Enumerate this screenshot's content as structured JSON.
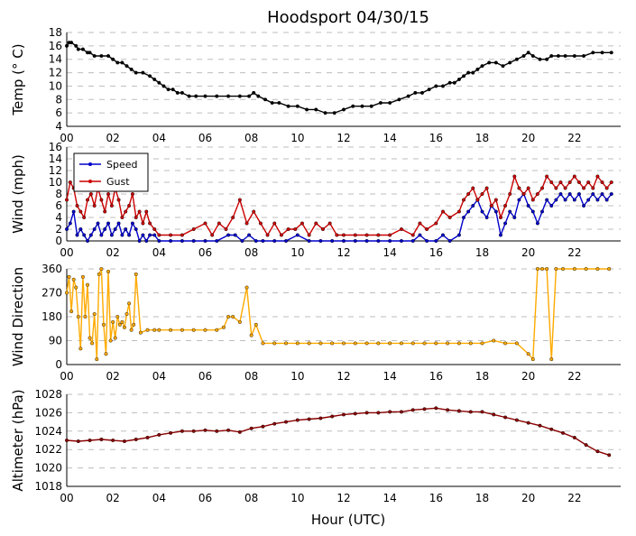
{
  "title": "Hoodsport 04/30/15",
  "xlabel": "Hour (UTC)",
  "chart_data": [
    {
      "type": "line",
      "name_id": "temp",
      "ylabel": "Temp ($^\\circ$C)",
      "ylabel_display": "Temp (° C)",
      "ylim": [
        4,
        18
      ],
      "yticks": [
        "4",
        "6",
        "8",
        "10",
        "12",
        "14",
        "16",
        "18"
      ],
      "xlim": [
        0,
        24
      ],
      "xticks": [
        "00",
        "02",
        "04",
        "06",
        "08",
        "10",
        "12",
        "14",
        "16",
        "18",
        "20",
        "22"
      ],
      "grid": true,
      "series": [
        {
          "color": "#000000",
          "marker": "point",
          "x": [
            0,
            0.1,
            0.2,
            0.4,
            0.5,
            0.7,
            0.9,
            1.0,
            1.2,
            1.5,
            1.8,
            2.0,
            2.2,
            2.4,
            2.6,
            2.8,
            3.0,
            3.3,
            3.6,
            3.8,
            4.0,
            4.2,
            4.4,
            4.6,
            4.8,
            5.0,
            5.3,
            5.6,
            6.0,
            6.5,
            7.0,
            7.5,
            7.9,
            8.1,
            8.3,
            8.6,
            8.9,
            9.2,
            9.6,
            10.0,
            10.4,
            10.8,
            11.2,
            11.6,
            12.0,
            12.4,
            12.8,
            13.2,
            13.6,
            14.0,
            14.4,
            14.8,
            15.1,
            15.4,
            15.7,
            16.0,
            16.3,
            16.6,
            16.8,
            17.0,
            17.2,
            17.4,
            17.6,
            17.8,
            18.0,
            18.3,
            18.6,
            18.9,
            19.2,
            19.5,
            19.8,
            20.0,
            20.2,
            20.5,
            20.8,
            21.0,
            21.3,
            21.6,
            22.0,
            22.4,
            22.8,
            23.2,
            23.6
          ],
          "y": [
            16.0,
            16.5,
            16.5,
            16.0,
            15.5,
            15.5,
            15.0,
            15.0,
            14.5,
            14.5,
            14.5,
            14.0,
            13.5,
            13.5,
            13.0,
            12.5,
            12.0,
            12.0,
            11.5,
            11.0,
            10.5,
            10.0,
            9.5,
            9.5,
            9.0,
            9.0,
            8.5,
            8.5,
            8.5,
            8.5,
            8.5,
            8.5,
            8.5,
            9.0,
            8.5,
            8.0,
            7.5,
            7.5,
            7.0,
            7.0,
            6.5,
            6.5,
            6.0,
            6.0,
            6.5,
            7.0,
            7.0,
            7.0,
            7.5,
            7.5,
            8.0,
            8.5,
            9.0,
            9.0,
            9.5,
            10.0,
            10.0,
            10.5,
            10.5,
            11.0,
            11.5,
            12.0,
            12.0,
            12.5,
            13.0,
            13.5,
            13.5,
            13.0,
            13.5,
            14.0,
            14.5,
            15.0,
            14.5,
            14.0,
            14.0,
            14.5,
            14.5,
            14.5,
            14.5,
            14.5,
            15.0,
            15.0,
            15.0
          ]
        }
      ]
    },
    {
      "type": "line",
      "name_id": "wind",
      "ylabel": "Wind (mph)",
      "ylim": [
        0,
        16
      ],
      "yticks": [
        "0",
        "2",
        "4",
        "6",
        "8",
        "10",
        "12",
        "14",
        "16"
      ],
      "xlim": [
        0,
        24
      ],
      "xticks": [
        "00",
        "02",
        "04",
        "06",
        "08",
        "10",
        "12",
        "14",
        "16",
        "18",
        "20",
        "22"
      ],
      "grid": true,
      "legend": {
        "placement": "upper-left",
        "entries": [
          "Speed",
          "Gust"
        ]
      },
      "series": [
        {
          "name": "Speed",
          "color": "#0000cc",
          "marker": "point",
          "x": [
            0,
            0.15,
            0.3,
            0.45,
            0.6,
            0.75,
            0.9,
            1.05,
            1.2,
            1.35,
            1.5,
            1.65,
            1.8,
            1.95,
            2.1,
            2.25,
            2.4,
            2.55,
            2.7,
            2.85,
            3.0,
            3.15,
            3.3,
            3.45,
            3.6,
            3.8,
            4.0,
            4.5,
            5.0,
            5.5,
            6.0,
            6.5,
            7.0,
            7.3,
            7.6,
            7.9,
            8.2,
            8.5,
            9.0,
            9.5,
            10.0,
            10.5,
            11.0,
            11.5,
            12.0,
            12.5,
            13.0,
            13.5,
            14.0,
            14.5,
            15.0,
            15.3,
            15.6,
            16.0,
            16.3,
            16.6,
            17.0,
            17.2,
            17.4,
            17.6,
            17.8,
            18.0,
            18.2,
            18.4,
            18.6,
            18.8,
            19.0,
            19.2,
            19.4,
            19.6,
            19.8,
            20.0,
            20.2,
            20.4,
            20.6,
            20.8,
            21.0,
            21.2,
            21.4,
            21.6,
            21.8,
            22.0,
            22.2,
            22.4,
            22.6,
            22.8,
            23.0,
            23.2,
            23.4,
            23.6
          ],
          "y": [
            2,
            3,
            5,
            1,
            2,
            1,
            0,
            1,
            2,
            3,
            1,
            2,
            3,
            1,
            2,
            3,
            1,
            2,
            1,
            3,
            2,
            0,
            1,
            0,
            1,
            1,
            0,
            0,
            0,
            0,
            0,
            0,
            1,
            1,
            0,
            1,
            0,
            0,
            0,
            0,
            1,
            0,
            0,
            0,
            0,
            0,
            0,
            0,
            0,
            0,
            0,
            1,
            0,
            0,
            1,
            0,
            1,
            4,
            5,
            6,
            7,
            5,
            4,
            6,
            5,
            1,
            3,
            5,
            4,
            7,
            8,
            6,
            5,
            3,
            5,
            7,
            6,
            7,
            8,
            7,
            8,
            7,
            8,
            6,
            7,
            8,
            7,
            8,
            7,
            8
          ]
        },
        {
          "name": "Gust",
          "color": "#cc0000",
          "marker": "point",
          "x": [
            0,
            0.15,
            0.3,
            0.45,
            0.6,
            0.75,
            0.9,
            1.05,
            1.2,
            1.35,
            1.5,
            1.65,
            1.8,
            1.95,
            2.1,
            2.25,
            2.4,
            2.55,
            2.7,
            2.85,
            3.0,
            3.15,
            3.3,
            3.45,
            3.6,
            3.8,
            4.0,
            4.5,
            5.0,
            5.5,
            6.0,
            6.3,
            6.6,
            6.9,
            7.2,
            7.5,
            7.8,
            8.1,
            8.4,
            8.7,
            9.0,
            9.3,
            9.6,
            9.9,
            10.2,
            10.5,
            10.8,
            11.1,
            11.4,
            11.7,
            12.0,
            12.5,
            13.0,
            13.5,
            14.0,
            14.5,
            15.0,
            15.3,
            15.6,
            16.0,
            16.3,
            16.6,
            17.0,
            17.2,
            17.4,
            17.6,
            17.8,
            18.0,
            18.2,
            18.4,
            18.6,
            18.8,
            19.0,
            19.2,
            19.4,
            19.6,
            19.8,
            20.0,
            20.2,
            20.4,
            20.6,
            20.8,
            21.0,
            21.2,
            21.4,
            21.6,
            21.8,
            22.0,
            22.2,
            22.4,
            22.6,
            22.8,
            23.0,
            23.2,
            23.4,
            23.6
          ],
          "y": [
            7,
            10,
            9,
            6,
            5,
            4,
            7,
            8,
            6,
            9,
            7,
            5,
            8,
            6,
            9,
            7,
            4,
            5,
            6,
            8,
            4,
            5,
            3,
            5,
            3,
            2,
            1,
            1,
            1,
            2,
            3,
            1,
            3,
            2,
            4,
            7,
            3,
            5,
            3,
            1,
            3,
            1,
            2,
            2,
            3,
            1,
            3,
            2,
            3,
            1,
            1,
            1,
            1,
            1,
            1,
            2,
            1,
            3,
            2,
            3,
            5,
            4,
            5,
            7,
            8,
            9,
            7,
            8,
            9,
            6,
            7,
            4,
            6,
            8,
            11,
            9,
            8,
            9,
            7,
            8,
            9,
            11,
            10,
            9,
            10,
            9,
            10,
            11,
            10,
            9,
            10,
            9,
            11,
            10,
            9,
            10
          ]
        }
      ]
    },
    {
      "type": "line",
      "name_id": "direction",
      "ylabel": "Wind Direction",
      "ylim": [
        0,
        360
      ],
      "yticks": [
        "0",
        "90",
        "180",
        "270",
        "360"
      ],
      "xlim": [
        0,
        24
      ],
      "xticks": [
        "00",
        "02",
        "04",
        "06",
        "08",
        "10",
        "12",
        "14",
        "16",
        "18",
        "20",
        "22"
      ],
      "grid": true,
      "series": [
        {
          "color": "#ffaa00",
          "marker": "point",
          "x": [
            0,
            0.1,
            0.2,
            0.3,
            0.4,
            0.5,
            0.6,
            0.7,
            0.8,
            0.9,
            1.0,
            1.1,
            1.2,
            1.3,
            1.4,
            1.5,
            1.6,
            1.7,
            1.8,
            1.9,
            2.0,
            2.1,
            2.2,
            2.3,
            2.4,
            2.5,
            2.6,
            2.7,
            2.8,
            2.9,
            3.0,
            3.2,
            3.5,
            3.8,
            4.0,
            4.5,
            5.0,
            5.5,
            6.0,
            6.5,
            6.8,
            7.0,
            7.2,
            7.5,
            7.8,
            8.0,
            8.2,
            8.5,
            9.0,
            9.5,
            10.0,
            10.5,
            11.0,
            11.5,
            12.0,
            12.5,
            13.0,
            13.5,
            14.0,
            14.5,
            15.0,
            15.5,
            16.0,
            16.5,
            17.0,
            17.5,
            18.0,
            18.5,
            19.0,
            19.5,
            20.0,
            20.2,
            20.4,
            20.6,
            20.8,
            21.0,
            21.2,
            21.5,
            22.0,
            22.5,
            23.0,
            23.5
          ],
          "y": [
            270,
            330,
            200,
            320,
            290,
            180,
            60,
            330,
            180,
            300,
            100,
            80,
            190,
            20,
            340,
            360,
            150,
            40,
            350,
            90,
            160,
            100,
            180,
            150,
            160,
            140,
            190,
            230,
            130,
            150,
            340,
            120,
            130,
            130,
            130,
            130,
            130,
            130,
            130,
            130,
            140,
            180,
            180,
            160,
            290,
            110,
            150,
            80,
            80,
            80,
            80,
            80,
            80,
            80,
            80,
            80,
            80,
            80,
            80,
            80,
            80,
            80,
            80,
            80,
            80,
            80,
            80,
            90,
            80,
            80,
            40,
            20,
            360,
            360,
            360,
            20,
            360,
            360,
            360,
            360,
            360,
            360
          ]
        }
      ]
    },
    {
      "type": "line",
      "name_id": "altimeter",
      "ylabel": "Altimeter (hPa)",
      "ylim": [
        1018,
        1028
      ],
      "yticks": [
        "1018",
        "1020",
        "1022",
        "1024",
        "1026",
        "1028"
      ],
      "xlim": [
        0,
        24
      ],
      "xticks": [
        "00",
        "02",
        "04",
        "06",
        "08",
        "10",
        "12",
        "14",
        "16",
        "18",
        "20",
        "22"
      ],
      "grid": true,
      "series": [
        {
          "color": "#8b0000",
          "marker": "point",
          "x": [
            0,
            0.5,
            1,
            1.5,
            2,
            2.5,
            3,
            3.5,
            4,
            4.5,
            5,
            5.5,
            6,
            6.5,
            7,
            7.5,
            8,
            8.5,
            9,
            9.5,
            10,
            10.5,
            11,
            11.5,
            12,
            12.5,
            13,
            13.5,
            14,
            14.5,
            15,
            15.5,
            16,
            16.5,
            17,
            17.5,
            18,
            18.5,
            19,
            19.5,
            20,
            20.5,
            21,
            21.5,
            22,
            22.5,
            23,
            23.5
          ],
          "y": [
            1023.0,
            1022.9,
            1023.0,
            1023.1,
            1023.0,
            1022.9,
            1023.1,
            1023.3,
            1023.6,
            1023.8,
            1024.0,
            1024.0,
            1024.1,
            1024.0,
            1024.1,
            1023.9,
            1024.3,
            1024.5,
            1024.8,
            1025.0,
            1025.2,
            1025.3,
            1025.4,
            1025.6,
            1025.8,
            1025.9,
            1026.0,
            1026.0,
            1026.1,
            1026.1,
            1026.3,
            1026.4,
            1026.5,
            1026.3,
            1026.2,
            1026.1,
            1026.1,
            1025.8,
            1025.5,
            1025.2,
            1024.9,
            1024.6,
            1024.2,
            1023.8,
            1023.3,
            1022.5,
            1021.8,
            1021.4
          ]
        }
      ]
    }
  ]
}
